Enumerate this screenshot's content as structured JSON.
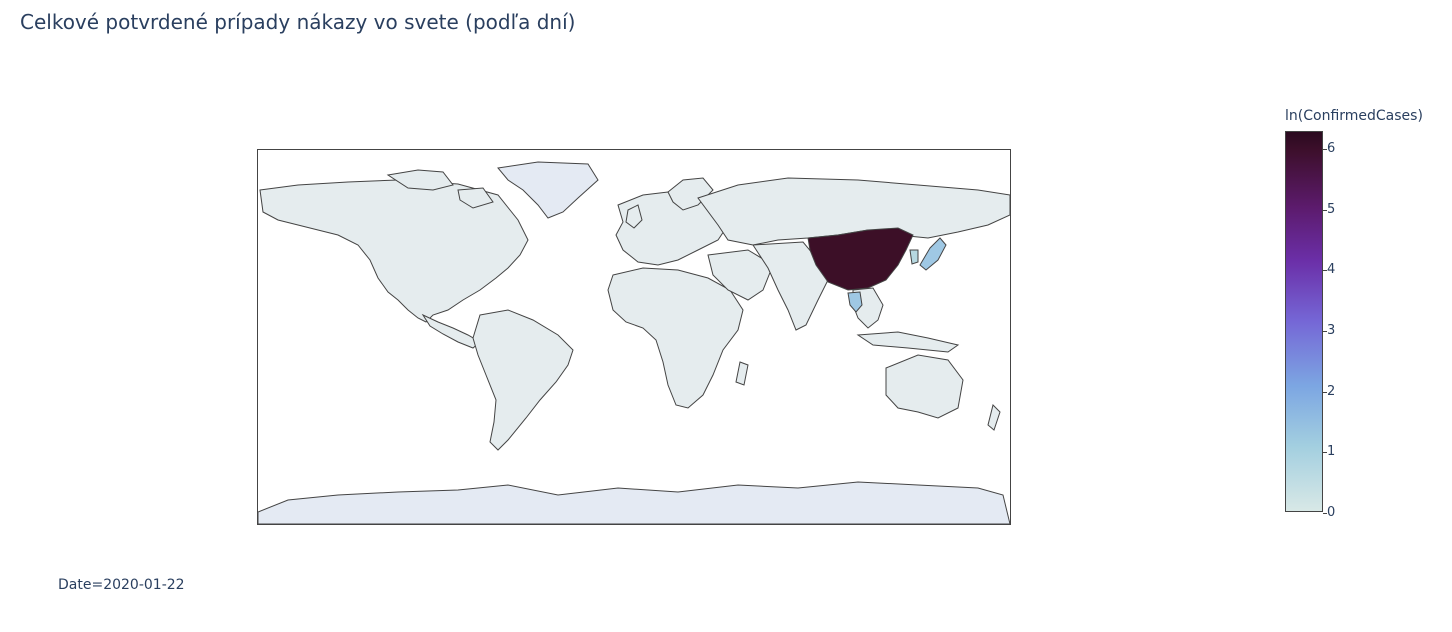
{
  "title": "Celkové potvrdené prípady nákazy vo svete (podľa dní)",
  "colorbar": {
    "title": "ln(ConfirmedCases)",
    "ticks": [
      "0",
      "1",
      "2",
      "3",
      "4",
      "5",
      "6"
    ],
    "colors": [
      "#d8e8e6",
      "#a3cfe0",
      "#7ca6e2",
      "#7567d6",
      "#6b2fa8",
      "#5c1b6d",
      "#3d0f2c"
    ]
  },
  "slider": {
    "label": "Date=2020-01-22"
  },
  "map": {
    "land_color": "#e5ecee",
    "antarctica_color": "#e4eaf3",
    "border_color": "#444444",
    "highlighted": [
      {
        "country": "China",
        "value": 6.3,
        "color": "#3c0f27"
      },
      {
        "country": "Thailand",
        "value": 1.1,
        "color": "#9fc8e4"
      },
      {
        "country": "Japan",
        "value": 1.0,
        "color": "#9fc8e4"
      },
      {
        "country": "South Korea",
        "value": 0.7,
        "color": "#b6d8e0"
      }
    ]
  }
}
